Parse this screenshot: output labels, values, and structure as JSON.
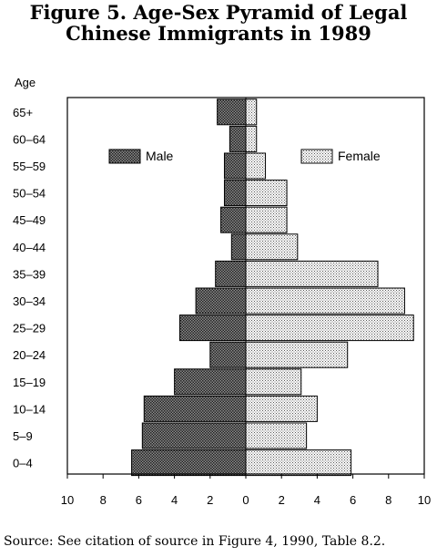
{
  "title_line1": "Figure 5.  Age-Sex Pyramid of Legal",
  "title_line2": "Chinese Immigrants in 1989",
  "source": "Source:  See citation of source in Figure 4, 1990, Table 8.2.",
  "colors": {
    "male_fill": "#6e6e6e",
    "female_fill": "#e6e6e6",
    "axis": "#000000"
  },
  "chart_data": {
    "type": "bar",
    "orientation": "horizontal-pyramid",
    "ylabel": "Age",
    "categories": [
      "65+",
      "60–64",
      "55–59",
      "50–54",
      "45–49",
      "40–44",
      "35–39",
      "30–34",
      "25–29",
      "20–24",
      "15–19",
      "10–14",
      "5–9",
      "0–4"
    ],
    "series": [
      {
        "name": "Male",
        "values": [
          1.6,
          0.9,
          1.2,
          1.2,
          1.4,
          0.8,
          1.7,
          2.8,
          3.7,
          2.0,
          4.0,
          5.7,
          5.8,
          6.4
        ]
      },
      {
        "name": "Female",
        "values": [
          0.6,
          0.6,
          1.1,
          2.3,
          2.3,
          2.9,
          7.4,
          8.9,
          9.4,
          5.7,
          3.1,
          4.0,
          3.4,
          5.9
        ]
      }
    ],
    "xlim": [
      -10,
      10
    ],
    "x_ticks": [
      -10,
      -8,
      -6,
      -4,
      -2,
      0,
      2,
      4,
      6,
      8,
      10
    ],
    "x_tick_labels": [
      "10",
      "8",
      "6",
      "4",
      "2",
      "0",
      "2",
      "4",
      "6",
      "8",
      "10"
    ],
    "legend": [
      {
        "label": "Male",
        "placement": "upper-left"
      },
      {
        "label": "Female",
        "placement": "upper-right"
      }
    ],
    "grid": false
  }
}
